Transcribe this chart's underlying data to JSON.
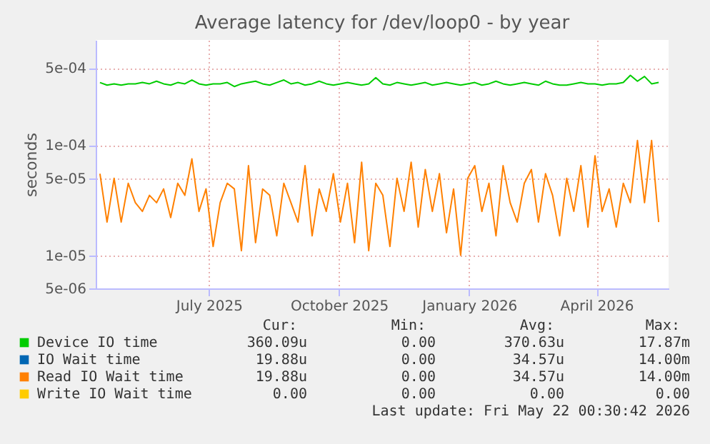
{
  "chart_data": {
    "type": "line",
    "title": "Average latency for /dev/loop0 - by year",
    "ylabel": "seconds",
    "log": "y",
    "grid": true,
    "legend": "bottom",
    "ylim": [
      5e-06,
      0.0009
    ],
    "yticks": [
      {
        "value": 5e-06,
        "label": "5e-06"
      },
      {
        "value": 1e-05,
        "label": "1e-05"
      },
      {
        "value": 5e-05,
        "label": "5e-05"
      },
      {
        "value": 0.0001,
        "label": "1e-04"
      },
      {
        "value": 0.0005,
        "label": "5e-04"
      }
    ],
    "xlim": [
      "2025-04-12",
      "2026-05-22"
    ],
    "xticks": [
      {
        "value": "2025-07-01",
        "label": "July 2025"
      },
      {
        "value": "2025-10-01",
        "label": "October 2025"
      },
      {
        "value": "2026-01-01",
        "label": "January 2026"
      },
      {
        "value": "2026-04-01",
        "label": "April 2026"
      }
    ],
    "x": [
      "2025-04-15",
      "2025-04-20",
      "2025-04-25",
      "2025-04-30",
      "2025-05-05",
      "2025-05-10",
      "2025-05-15",
      "2025-05-20",
      "2025-05-25",
      "2025-05-30",
      "2025-06-04",
      "2025-06-09",
      "2025-06-14",
      "2025-06-19",
      "2025-06-24",
      "2025-06-29",
      "2025-07-04",
      "2025-07-09",
      "2025-07-14",
      "2025-07-19",
      "2025-07-24",
      "2025-07-29",
      "2025-08-03",
      "2025-08-08",
      "2025-08-13",
      "2025-08-18",
      "2025-08-23",
      "2025-08-28",
      "2025-09-02",
      "2025-09-07",
      "2025-09-12",
      "2025-09-17",
      "2025-09-22",
      "2025-09-27",
      "2025-10-02",
      "2025-10-07",
      "2025-10-12",
      "2025-10-17",
      "2025-10-22",
      "2025-10-27",
      "2025-11-01",
      "2025-11-06",
      "2025-11-11",
      "2025-11-16",
      "2025-11-21",
      "2025-11-26",
      "2025-12-01",
      "2025-12-06",
      "2025-12-11",
      "2025-12-16",
      "2025-12-21",
      "2025-12-26",
      "2025-12-31",
      "2026-01-05",
      "2026-01-10",
      "2026-01-15",
      "2026-01-20",
      "2026-01-25",
      "2026-01-30",
      "2026-02-04",
      "2026-02-09",
      "2026-02-14",
      "2026-02-19",
      "2026-02-24",
      "2026-03-01",
      "2026-03-06",
      "2026-03-11",
      "2026-03-16",
      "2026-03-21",
      "2026-03-26",
      "2026-03-31",
      "2026-04-05",
      "2026-04-10",
      "2026-04-15",
      "2026-04-20",
      "2026-04-25",
      "2026-04-30",
      "2026-05-05",
      "2026-05-10",
      "2026-05-15"
    ],
    "series": [
      {
        "name": "Device IO time",
        "color": "#00cc00",
        "values": [
          0.00037,
          0.00035,
          0.00036,
          0.00035,
          0.00036,
          0.00036,
          0.00037,
          0.00036,
          0.00038,
          0.00036,
          0.00035,
          0.00037,
          0.00036,
          0.00039,
          0.00036,
          0.00035,
          0.00036,
          0.00036,
          0.00037,
          0.00034,
          0.00036,
          0.00037,
          0.00038,
          0.00036,
          0.00035,
          0.00037,
          0.00039,
          0.00036,
          0.00037,
          0.00035,
          0.00036,
          0.00038,
          0.00036,
          0.00035,
          0.00036,
          0.00037,
          0.00036,
          0.00035,
          0.00036,
          0.00041,
          0.00036,
          0.00035,
          0.00037,
          0.00036,
          0.00035,
          0.00036,
          0.00037,
          0.00035,
          0.00036,
          0.00037,
          0.00036,
          0.00035,
          0.00036,
          0.00037,
          0.00035,
          0.00036,
          0.00038,
          0.00036,
          0.00035,
          0.00036,
          0.00037,
          0.00036,
          0.00035,
          0.00038,
          0.00036,
          0.00035,
          0.00035,
          0.00036,
          0.00037,
          0.00036,
          0.00036,
          0.00035,
          0.00036,
          0.00036,
          0.00037,
          0.00043,
          0.00038,
          0.00042,
          0.00036,
          0.00037
        ]
      },
      {
        "name": "IO Wait time",
        "color": "#0066b3",
        "values": [
          null,
          null,
          null,
          null,
          null,
          null,
          null,
          null,
          null,
          null,
          null,
          null,
          null,
          null,
          null,
          null,
          null,
          null,
          null,
          null,
          null,
          null,
          null,
          null,
          null,
          null,
          null,
          null,
          null,
          null,
          null,
          null,
          null,
          null,
          null,
          null,
          null,
          null,
          null,
          null,
          null,
          null,
          null,
          null,
          null,
          null,
          null,
          null,
          null,
          null,
          null,
          null,
          null,
          null,
          null,
          null,
          null,
          null,
          null,
          null,
          null,
          null,
          null,
          null,
          null,
          null,
          null,
          null,
          null,
          null,
          null,
          null,
          null,
          null,
          null,
          null,
          null,
          null,
          null,
          null
        ]
      },
      {
        "name": "Read IO Wait time",
        "color": "#ff8000",
        "values": [
          5.5e-05,
          2e-05,
          5e-05,
          2e-05,
          4.5e-05,
          3e-05,
          2.5e-05,
          3.5e-05,
          3e-05,
          4e-05,
          2.2e-05,
          4.5e-05,
          3.5e-05,
          7.5e-05,
          2.5e-05,
          4e-05,
          1.2e-05,
          3e-05,
          4.5e-05,
          4e-05,
          1.1e-05,
          6.5e-05,
          1.3e-05,
          4e-05,
          3.5e-05,
          1.5e-05,
          4.5e-05,
          3e-05,
          2e-05,
          6.5e-05,
          1.5e-05,
          4e-05,
          2.5e-05,
          5.5e-05,
          2e-05,
          4.5e-05,
          1.3e-05,
          7e-05,
          1.1e-05,
          4.5e-05,
          3.5e-05,
          1.2e-05,
          5e-05,
          2.5e-05,
          7e-05,
          1.8e-05,
          6e-05,
          2.5e-05,
          5.5e-05,
          1.6e-05,
          4e-05,
          1e-05,
          5e-05,
          6.5e-05,
          2.5e-05,
          4.5e-05,
          1.5e-05,
          6.5e-05,
          3e-05,
          2e-05,
          4.5e-05,
          6e-05,
          2e-05,
          5.5e-05,
          3.5e-05,
          1.5e-05,
          5e-05,
          2.5e-05,
          6.5e-05,
          1.8e-05,
          8e-05,
          2.5e-05,
          4e-05,
          1.8e-05,
          4.5e-05,
          3e-05,
          0.00011,
          3e-05,
          0.00011,
          2e-05
        ]
      },
      {
        "name": "Write IO Wait time",
        "color": "#ffcc00",
        "values": [
          null,
          null,
          null,
          null,
          null,
          null,
          null,
          null,
          null,
          null,
          null,
          null,
          null,
          null,
          null,
          null,
          null,
          null,
          null,
          null,
          null,
          null,
          null,
          null,
          null,
          null,
          null,
          null,
          null,
          null,
          null,
          null,
          null,
          null,
          null,
          null,
          null,
          null,
          null,
          null,
          null,
          null,
          null,
          null,
          null,
          null,
          null,
          null,
          null,
          null,
          null,
          null,
          null,
          null,
          null,
          null,
          null,
          null,
          null,
          null,
          null,
          null,
          null,
          null,
          null,
          null,
          null,
          null,
          null,
          null,
          null,
          null,
          null,
          null,
          null,
          null,
          null,
          null,
          null,
          null
        ]
      }
    ],
    "annotations": [
      "Cur:",
      "Min:",
      "Avg:",
      "Max:",
      "360.09u",
      "0.00",
      "370.63u",
      "17.87m",
      "19.88u",
      "0.00",
      "34.57u",
      "14.00m",
      "19.88u",
      "0.00",
      "34.57u",
      "14.00m",
      "0.00",
      "0.00",
      "0.00",
      "0.00",
      "Last update: Fri May 22 00:30:42 2026"
    ]
  }
}
